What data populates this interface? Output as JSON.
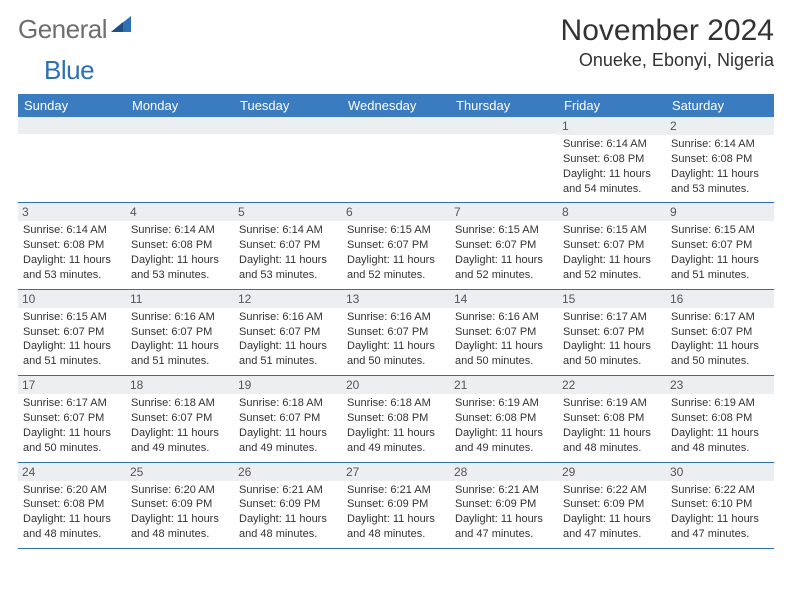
{
  "logo": {
    "main": "General",
    "accent": "Blue"
  },
  "title": "November 2024",
  "location": "Onueke, Ebonyi, Nigeria",
  "colors": {
    "header_bg": "#3b7bbf",
    "header_fg": "#ffffff",
    "daynum_bg": "#eceff2",
    "border": "#2f6fb3",
    "text": "#333333",
    "logo_gray": "#6e6e6e",
    "logo_blue": "#2f6fb3"
  },
  "dayNames": [
    "Sunday",
    "Monday",
    "Tuesday",
    "Wednesday",
    "Thursday",
    "Friday",
    "Saturday"
  ],
  "weeks": [
    [
      {
        "n": "",
        "sr": "",
        "ss": "",
        "dl": ""
      },
      {
        "n": "",
        "sr": "",
        "ss": "",
        "dl": ""
      },
      {
        "n": "",
        "sr": "",
        "ss": "",
        "dl": ""
      },
      {
        "n": "",
        "sr": "",
        "ss": "",
        "dl": ""
      },
      {
        "n": "",
        "sr": "",
        "ss": "",
        "dl": ""
      },
      {
        "n": "1",
        "sr": "Sunrise: 6:14 AM",
        "ss": "Sunset: 6:08 PM",
        "dl": "Daylight: 11 hours and 54 minutes."
      },
      {
        "n": "2",
        "sr": "Sunrise: 6:14 AM",
        "ss": "Sunset: 6:08 PM",
        "dl": "Daylight: 11 hours and 53 minutes."
      }
    ],
    [
      {
        "n": "3",
        "sr": "Sunrise: 6:14 AM",
        "ss": "Sunset: 6:08 PM",
        "dl": "Daylight: 11 hours and 53 minutes."
      },
      {
        "n": "4",
        "sr": "Sunrise: 6:14 AM",
        "ss": "Sunset: 6:08 PM",
        "dl": "Daylight: 11 hours and 53 minutes."
      },
      {
        "n": "5",
        "sr": "Sunrise: 6:14 AM",
        "ss": "Sunset: 6:07 PM",
        "dl": "Daylight: 11 hours and 53 minutes."
      },
      {
        "n": "6",
        "sr": "Sunrise: 6:15 AM",
        "ss": "Sunset: 6:07 PM",
        "dl": "Daylight: 11 hours and 52 minutes."
      },
      {
        "n": "7",
        "sr": "Sunrise: 6:15 AM",
        "ss": "Sunset: 6:07 PM",
        "dl": "Daylight: 11 hours and 52 minutes."
      },
      {
        "n": "8",
        "sr": "Sunrise: 6:15 AM",
        "ss": "Sunset: 6:07 PM",
        "dl": "Daylight: 11 hours and 52 minutes."
      },
      {
        "n": "9",
        "sr": "Sunrise: 6:15 AM",
        "ss": "Sunset: 6:07 PM",
        "dl": "Daylight: 11 hours and 51 minutes."
      }
    ],
    [
      {
        "n": "10",
        "sr": "Sunrise: 6:15 AM",
        "ss": "Sunset: 6:07 PM",
        "dl": "Daylight: 11 hours and 51 minutes."
      },
      {
        "n": "11",
        "sr": "Sunrise: 6:16 AM",
        "ss": "Sunset: 6:07 PM",
        "dl": "Daylight: 11 hours and 51 minutes."
      },
      {
        "n": "12",
        "sr": "Sunrise: 6:16 AM",
        "ss": "Sunset: 6:07 PM",
        "dl": "Daylight: 11 hours and 51 minutes."
      },
      {
        "n": "13",
        "sr": "Sunrise: 6:16 AM",
        "ss": "Sunset: 6:07 PM",
        "dl": "Daylight: 11 hours and 50 minutes."
      },
      {
        "n": "14",
        "sr": "Sunrise: 6:16 AM",
        "ss": "Sunset: 6:07 PM",
        "dl": "Daylight: 11 hours and 50 minutes."
      },
      {
        "n": "15",
        "sr": "Sunrise: 6:17 AM",
        "ss": "Sunset: 6:07 PM",
        "dl": "Daylight: 11 hours and 50 minutes."
      },
      {
        "n": "16",
        "sr": "Sunrise: 6:17 AM",
        "ss": "Sunset: 6:07 PM",
        "dl": "Daylight: 11 hours and 50 minutes."
      }
    ],
    [
      {
        "n": "17",
        "sr": "Sunrise: 6:17 AM",
        "ss": "Sunset: 6:07 PM",
        "dl": "Daylight: 11 hours and 50 minutes."
      },
      {
        "n": "18",
        "sr": "Sunrise: 6:18 AM",
        "ss": "Sunset: 6:07 PM",
        "dl": "Daylight: 11 hours and 49 minutes."
      },
      {
        "n": "19",
        "sr": "Sunrise: 6:18 AM",
        "ss": "Sunset: 6:07 PM",
        "dl": "Daylight: 11 hours and 49 minutes."
      },
      {
        "n": "20",
        "sr": "Sunrise: 6:18 AM",
        "ss": "Sunset: 6:08 PM",
        "dl": "Daylight: 11 hours and 49 minutes."
      },
      {
        "n": "21",
        "sr": "Sunrise: 6:19 AM",
        "ss": "Sunset: 6:08 PM",
        "dl": "Daylight: 11 hours and 49 minutes."
      },
      {
        "n": "22",
        "sr": "Sunrise: 6:19 AM",
        "ss": "Sunset: 6:08 PM",
        "dl": "Daylight: 11 hours and 48 minutes."
      },
      {
        "n": "23",
        "sr": "Sunrise: 6:19 AM",
        "ss": "Sunset: 6:08 PM",
        "dl": "Daylight: 11 hours and 48 minutes."
      }
    ],
    [
      {
        "n": "24",
        "sr": "Sunrise: 6:20 AM",
        "ss": "Sunset: 6:08 PM",
        "dl": "Daylight: 11 hours and 48 minutes."
      },
      {
        "n": "25",
        "sr": "Sunrise: 6:20 AM",
        "ss": "Sunset: 6:09 PM",
        "dl": "Daylight: 11 hours and 48 minutes."
      },
      {
        "n": "26",
        "sr": "Sunrise: 6:21 AM",
        "ss": "Sunset: 6:09 PM",
        "dl": "Daylight: 11 hours and 48 minutes."
      },
      {
        "n": "27",
        "sr": "Sunrise: 6:21 AM",
        "ss": "Sunset: 6:09 PM",
        "dl": "Daylight: 11 hours and 48 minutes."
      },
      {
        "n": "28",
        "sr": "Sunrise: 6:21 AM",
        "ss": "Sunset: 6:09 PM",
        "dl": "Daylight: 11 hours and 47 minutes."
      },
      {
        "n": "29",
        "sr": "Sunrise: 6:22 AM",
        "ss": "Sunset: 6:09 PM",
        "dl": "Daylight: 11 hours and 47 minutes."
      },
      {
        "n": "30",
        "sr": "Sunrise: 6:22 AM",
        "ss": "Sunset: 6:10 PM",
        "dl": "Daylight: 11 hours and 47 minutes."
      }
    ]
  ]
}
